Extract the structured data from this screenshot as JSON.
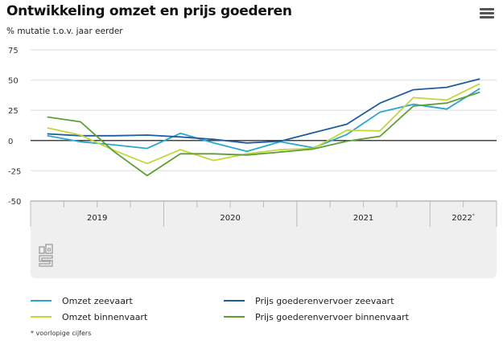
{
  "header": {
    "title": "Ontwikkeling omzet en prijs goederen",
    "subtitle": "% mutatie t.o.v. jaar eerder",
    "menu_icon": "hamburger-menu-icon"
  },
  "logo": {
    "icon": "cbs-logo-icon"
  },
  "footnote": "* voorlopige cijfers",
  "chart_data": {
    "type": "line",
    "title": "Ontwikkeling omzet en prijs goederen",
    "subtitle": "% mutatie t.o.v. jaar eerder",
    "xlabel": "",
    "ylabel": "",
    "ylim": [
      -50,
      75
    ],
    "yticks": [
      75,
      50,
      25,
      0,
      -25,
      -50
    ],
    "grid": true,
    "legend_position": "bottom",
    "x": [
      "2019Q1",
      "2019Q2",
      "2019Q3",
      "2019Q4",
      "2020Q1",
      "2020Q2",
      "2020Q3",
      "2020Q4",
      "2021Q1",
      "2021Q2",
      "2021Q3",
      "2021Q4",
      "2022Q1",
      "2022Q2"
    ],
    "year_groups": [
      {
        "label": "2019",
        "sup": "",
        "quarters": 4
      },
      {
        "label": "2020",
        "sup": "",
        "quarters": 4
      },
      {
        "label": "2021",
        "sup": "",
        "quarters": 4
      },
      {
        "label": "2022",
        "sup": "*",
        "quarters": 2
      }
    ],
    "series": [
      {
        "name": "Omzet zeevaart",
        "color": "#2aa6cf",
        "values": [
          4,
          -1,
          -3.5,
          -6.5,
          6,
          -2,
          -9,
          -1,
          -6,
          5,
          23.5,
          30,
          26,
          43
        ]
      },
      {
        "name": "Prijs goederenvervoer zeevaart",
        "color": "#1f5c9e",
        "values": [
          5.5,
          4,
          4,
          4.5,
          3,
          1,
          -2,
          -0.5,
          6.5,
          13.5,
          31,
          42,
          44,
          51
        ]
      },
      {
        "name": "Omzet binnenvaart",
        "color": "#c2d73a",
        "values": [
          10.5,
          4.5,
          -8,
          -19,
          -7.5,
          -16.5,
          -11,
          -7.5,
          -6.5,
          8.5,
          8,
          35.5,
          33.5,
          47
        ]
      },
      {
        "name": "Prijs goederenvervoer binnenvaart",
        "color": "#5f9e35",
        "values": [
          19.5,
          15.5,
          -9,
          -29,
          -11,
          -11,
          -12,
          -9.5,
          -7,
          -0.5,
          3.5,
          28.5,
          31,
          40
        ]
      }
    ]
  },
  "legend": {
    "items": [
      {
        "label": "Omzet zeevaart",
        "color": "#2aa6cf"
      },
      {
        "label": "Omzet binnenvaart",
        "color": "#c2d73a"
      },
      {
        "label": "Prijs goederenvervoer zeevaart",
        "color": "#1f5c9e"
      },
      {
        "label": "Prijs goederenvervoer binnenvaart",
        "color": "#5f9e35"
      }
    ]
  }
}
